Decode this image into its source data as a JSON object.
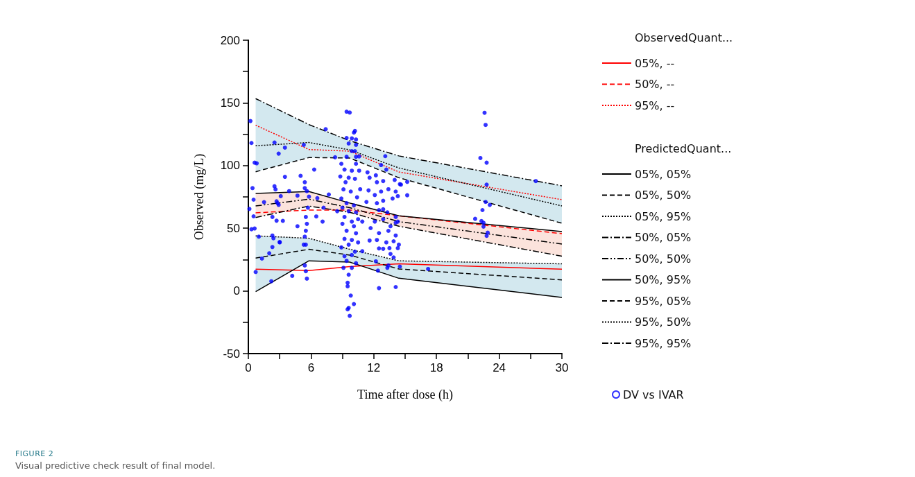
{
  "chart_data": {
    "type": "line",
    "xlabel": "Time after dose (h)",
    "ylabel": "Observed (mg/L)",
    "annotations": [
      "ObservedQuant...",
      "PredictedQuant...",
      "FIGURE 2",
      "Visual predictive check result of final model."
    ],
    "x": [
      0.7,
      5.8,
      9.7,
      14.4,
      30
    ],
    "xlim": [
      0,
      30
    ],
    "xticks": [
      0,
      {
        "value": 3,
        "label": null
      },
      6,
      {
        "value": 9,
        "label": null
      },
      12,
      {
        "value": 15,
        "label": null
      },
      18,
      {
        "value": 21,
        "label": null
      },
      24,
      {
        "value": 27,
        "label": null
      },
      30
    ],
    "ylim": [
      -50,
      200
    ],
    "yticks": [
      -50,
      {
        "value": -25,
        "label": null
      },
      0,
      {
        "value": 25,
        "label": null
      },
      50,
      {
        "value": 75,
        "label": null
      },
      100,
      {
        "value": 125,
        "label": null
      },
      150,
      {
        "value": 175,
        "label": null
      },
      200
    ],
    "grid": false,
    "legend": "right",
    "marker": "none",
    "series": [
      {
        "name": "05%, --",
        "color": "#ff0000",
        "line_style": "solid",
        "values": [
          17.3,
          16.2,
          19.4,
          21.6,
          17.3
        ]
      },
      {
        "name": "50%, --",
        "color": "#ff0000",
        "line_style": "dashed",
        "values": [
          62.3,
          64.5,
          64.5,
          59.9,
          45.7
        ]
      },
      {
        "name": "95%, --",
        "color": "#ff0000",
        "line_style": "dotted",
        "values": [
          132.2,
          112.8,
          111.5,
          94.9,
          72.8
        ]
      },
      {
        "name": "05%, 05%",
        "color": "#000000",
        "line_style": "solid",
        "values": [
          -0.6,
          24.0,
          23.0,
          10.1,
          -5.2
        ]
      },
      {
        "name": "05%, 50%",
        "color": "#000000",
        "line_style": "dashed",
        "values": [
          26.2,
          33.2,
          28.6,
          17.5,
          8.8
        ],
        "lower": [
          -0.6,
          24.0,
          23.0,
          10.1,
          -5.2
        ],
        "upper": [
          43.9,
          42.0,
          33.2,
          24.0,
          21.6
        ]
      },
      {
        "name": "05%, 95%",
        "color": "#000000",
        "line_style": "dotted",
        "values": [
          43.9,
          42.0,
          33.2,
          24.0,
          21.6
        ]
      },
      {
        "name": "50%, 05%",
        "color": "#000000",
        "line_style": "dashdot",
        "values": [
          58.6,
          67.7,
          62.7,
          51.6,
          27.7
        ]
      },
      {
        "name": "50%, 50%",
        "color": "#000000",
        "line_style": "dashdotdot",
        "values": [
          67.8,
          73.2,
          66.4,
          55.3,
          37.4
        ],
        "lower": [
          58.6,
          67.7,
          62.7,
          51.6,
          27.7
        ],
        "upper": [
          77.8,
          79.3,
          70.1,
          59.9,
          47.4
        ]
      },
      {
        "name": "50%, 95%",
        "color": "#000000",
        "line_style": "solid",
        "values": [
          77.8,
          79.3,
          70.1,
          59.9,
          47.4
        ]
      },
      {
        "name": "95%, 05%",
        "color": "#000000",
        "line_style": "dashed",
        "values": [
          95.1,
          106.4,
          106.0,
          90.3,
          54.0
        ]
      },
      {
        "name": "95%, 50%",
        "color": "#000000",
        "line_style": "dotted",
        "values": [
          115.8,
          118.4,
          112.5,
          98.1,
          67.8
        ],
        "lower": [
          95.1,
          106.4,
          106.0,
          90.3,
          54.0
        ],
        "upper": [
          153.4,
          132.7,
          119.8,
          107.7,
          83.9
        ]
      },
      {
        "name": "95%, 95%",
        "color": "#000000",
        "line_style": "dashdot",
        "values": [
          153.4,
          132.7,
          119.8,
          107.7,
          83.9
        ]
      },
      {
        "name": "DV vs IVAR",
        "type": "scatter",
        "color": "#0000ff",
        "marker": "circle",
        "x": [
          0.2,
          0.3,
          0.6,
          0.8,
          0.4,
          0.5,
          0.1,
          0.5,
          0.3,
          0.6,
          0.7,
          1.0,
          1.3,
          1.5,
          2.2,
          2.0,
          2.3,
          2.3,
          2.4,
          2.3,
          2.6,
          2.5,
          2.5,
          2.9,
          3.5,
          3.5,
          3.1,
          2.7,
          2.8,
          2.9,
          2.7,
          3.3,
          3.0,
          3.0,
          3.9,
          4.2,
          4.7,
          4.7,
          5.0,
          5.3,
          5.4,
          5.4,
          5.6,
          5.8,
          5.7,
          5.5,
          5.6,
          5.5,
          5.4,
          5.3,
          5.5,
          5.4,
          5.5,
          5.6,
          6.3,
          6.6,
          6.5,
          7.2,
          7.1,
          7.4,
          7.7,
          8.3,
          9.4,
          9.7,
          10.2,
          10.1,
          9.4,
          9.9,
          10.3,
          9.6,
          10.3,
          9.9,
          10.2,
          9.4,
          10.3,
          10.6,
          8.9,
          10.3,
          9.2,
          9.9,
          10.6,
          8.8,
          9.6,
          10.2,
          9.3,
          10.7,
          9.1,
          9.8,
          10.4,
          8.9,
          9.4,
          10.1,
          9.0,
          9.6,
          10.3,
          8.5,
          9.2,
          9.9,
          10.5,
          9.0,
          10.1,
          10.9,
          9.4,
          10.3,
          9.2,
          9.9,
          10.5,
          8.9,
          9.6,
          10.2,
          9.2,
          9.9,
          10.9,
          9.4,
          10.3,
          9.1,
          9.9,
          9.6,
          9.5,
          9.5,
          9.8,
          10.1,
          9.6,
          9.5,
          9.7,
          12.5,
          14.1,
          13.1,
          12.7,
          12.2,
          13.2,
          11.4,
          11.6,
          12.3,
          12.9,
          14.0,
          14.6,
          15.2,
          15.2,
          11.5,
          12.1,
          12.7,
          13.4,
          14.1,
          11.3,
          12.3,
          12.9,
          13.8,
          14.3,
          12.5,
          13.3,
          14.1,
          14.3,
          12.1,
          12.9,
          13.6,
          11.7,
          12.5,
          13.4,
          14.1,
          12.3,
          13.2,
          13.9,
          12.9,
          13.5,
          14.3,
          12.5,
          13.6,
          13.9,
          12.2,
          13.4,
          13.3,
          14.5,
          12.4,
          11.6,
          14.5,
          12.9,
          14.1,
          14.4,
          17.2,
          22.2,
          22.6,
          22.7,
          22.8,
          22.8,
          22.7,
          23.1,
          22.4,
          21.7,
          22.3,
          22.5,
          22.5,
          22.9,
          22.8,
          27.5
        ],
        "values": [
          135.5,
          118,
          102.3,
          101.8,
          82,
          72.8,
          65.4,
          59.5,
          49.2,
          49.8,
          15.1,
          43.3,
          25.8,
          70.8,
          7.7,
          30,
          44.2,
          35,
          42,
          59,
          81,
          83.5,
          118.4,
          109.5,
          114.3,
          91,
          75.6,
          71.5,
          70,
          68.6,
          56,
          55.9,
          38.7,
          39,
          79.6,
          12,
          51.6,
          76,
          91.8,
          116.5,
          86.7,
          82,
          79.6,
          75.2,
          66.4,
          59,
          53.5,
          48,
          43.3,
          36.9,
          36.9,
          20.3,
          15.7,
          9.8,
          96.8,
          74,
          59.4,
          66.4,
          55.3,
          129,
          76.9,
          106.6,
          143,
          142.3,
          127.6,
          126.3,
          122,
          121.7,
          120.8,
          117.6,
          116.5,
          111.5,
          111.5,
          107,
          107,
          107.3,
          101.4,
          101.4,
          96.8,
          95.9,
          95.9,
          91.3,
          90.3,
          89.4,
          86.7,
          81.1,
          81,
          79.3,
          74.7,
          73.7,
          70,
          68.2,
          66.4,
          63.6,
          62.7,
          63.6,
          59,
          55.3,
          57.2,
          53.5,
          51.6,
          55.3,
          48,
          46,
          41.5,
          40.6,
          38.7,
          34.7,
          36.9,
          31.3,
          27.7,
          28.6,
          31.7,
          24,
          22.1,
          18.4,
          18.4,
          12.9,
          6.5,
          3.7,
          -3.7,
          -10.5,
          -13.5,
          -14.7,
          -19.9,
          2.2,
          3.1,
          107.5,
          100.4,
          92.2,
          96.8,
          94.6,
          90.3,
          86.7,
          87.6,
          88.5,
          84.8,
          87,
          76.3,
          80.2,
          76.5,
          79.3,
          81.1,
          79.3,
          71,
          70,
          71.9,
          73.7,
          75.6,
          64.5,
          62.7,
          59,
          55.3,
          55.3,
          57.2,
          51.6,
          50.1,
          46.1,
          47.9,
          44.2,
          40.6,
          38.7,
          39.6,
          33.6,
          34.1,
          34.1,
          33.9,
          29.5,
          26.7,
          23.6,
          20.3,
          18.4,
          19.4,
          16.2,
          40.2,
          85.2,
          65.1,
          54.4,
          36.9,
          17.5,
          106,
          142.1,
          132.4,
          102.3,
          84.8,
          71,
          68.6,
          64.5,
          57.5,
          55.7,
          54.4,
          51.3,
          46.5,
          43.9,
          87.6
        ]
      }
    ]
  }
}
